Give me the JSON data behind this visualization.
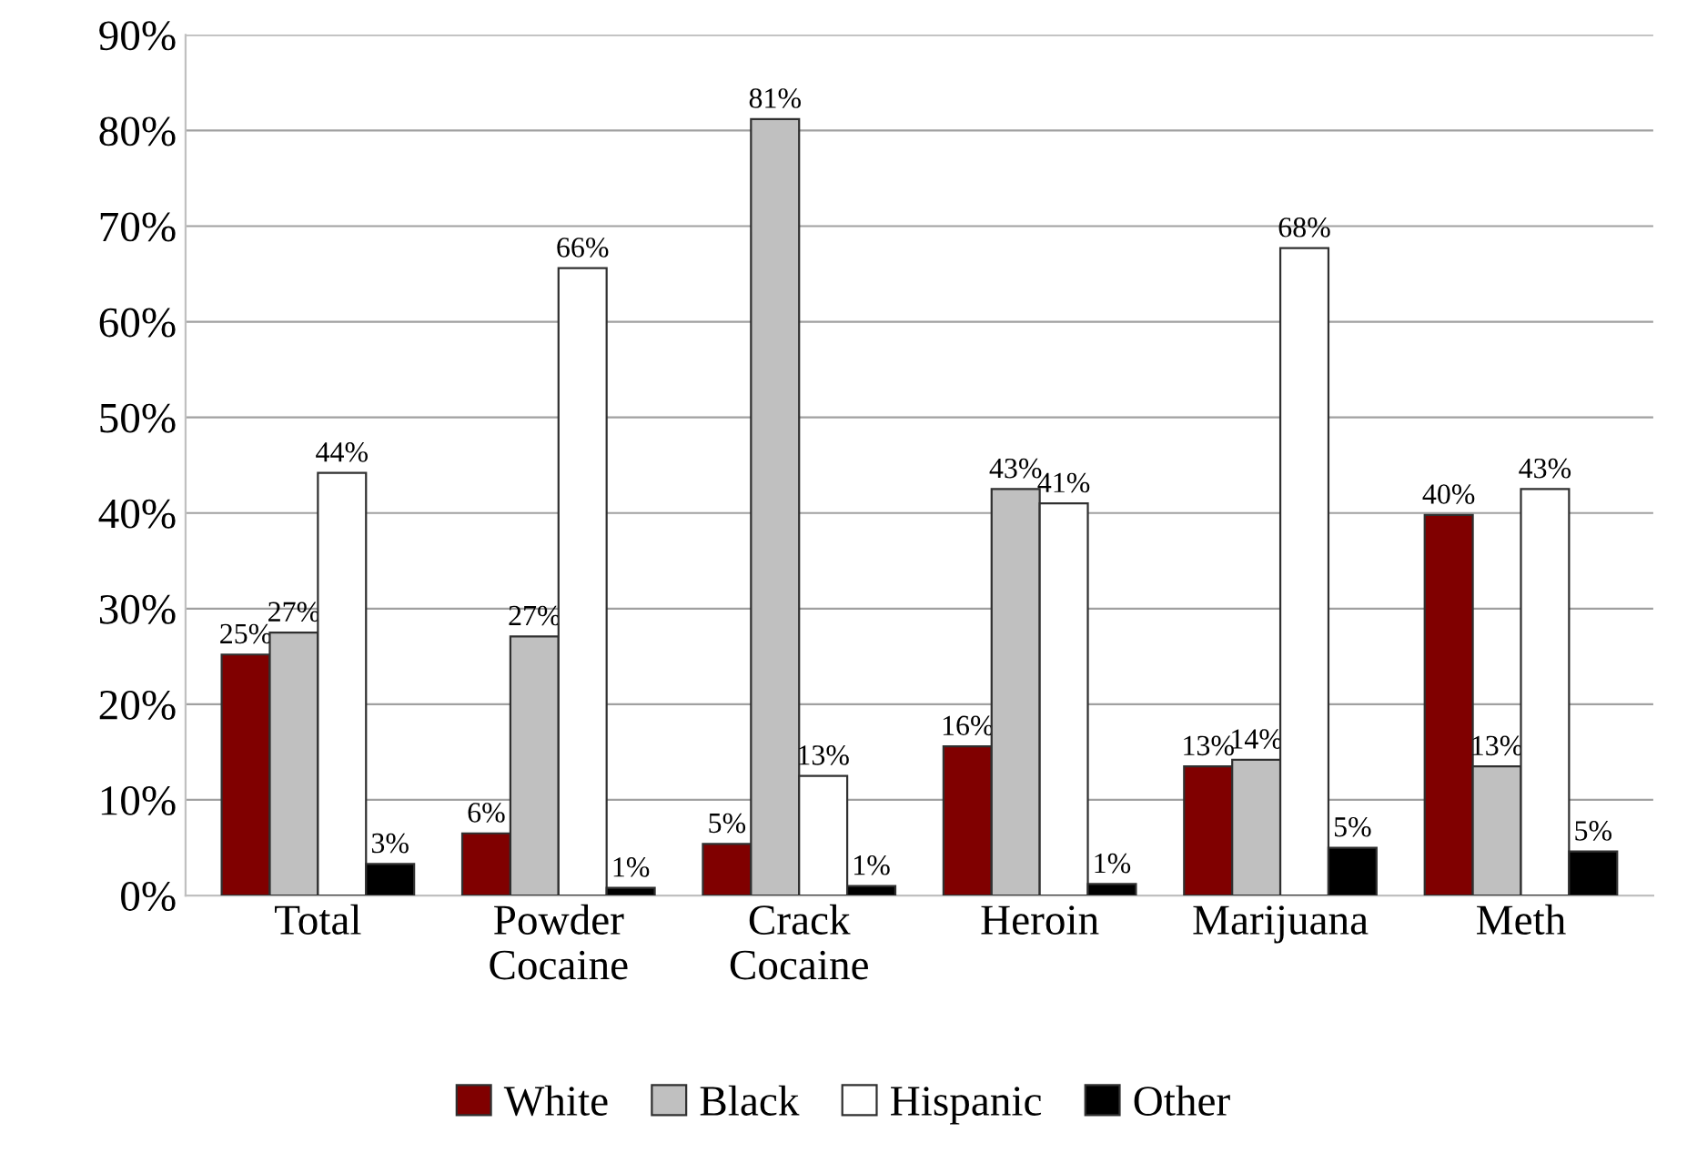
{
  "chart_data": {
    "type": "bar",
    "categories": [
      "Total",
      "Powder\nCocaine",
      "Crack\nCocaine",
      "Heroin",
      "Marijuana",
      "Meth"
    ],
    "series": [
      {
        "name": "White",
        "color": "#800000",
        "values": [
          25.2,
          6.5,
          5.4,
          15.6,
          13.5,
          39.8
        ],
        "value_labels": [
          "25%",
          "6%",
          "5%",
          "16%",
          "13%",
          "40%"
        ]
      },
      {
        "name": "Black",
        "color": "#c0c0c0",
        "values": [
          27.5,
          27.1,
          81.2,
          42.5,
          14.2,
          13.5
        ],
        "value_labels": [
          "27%",
          "27%",
          "81%",
          "43%",
          "14%",
          "13%"
        ]
      },
      {
        "name": "Hispanic",
        "color": "#ffffff",
        "values": [
          44.2,
          65.6,
          12.5,
          41.0,
          67.7,
          42.5
        ],
        "value_labels": [
          "44%",
          "66%",
          "13%",
          "41%",
          "68%",
          "43%"
        ]
      },
      {
        "name": "Other",
        "color": "#000000",
        "values": [
          3.3,
          0.8,
          1.0,
          1.2,
          5.0,
          4.6
        ],
        "value_labels": [
          "3%",
          "1%",
          "1%",
          "1%",
          "5%",
          "5%"
        ]
      }
    ],
    "ylim": [
      0,
      90
    ],
    "yticks": [
      {
        "value": 0,
        "label": "0%"
      },
      {
        "value": 10,
        "label": "10%"
      },
      {
        "value": 20,
        "label": "20%"
      },
      {
        "value": 30,
        "label": "30%"
      },
      {
        "value": 40,
        "label": "40%"
      },
      {
        "value": 50,
        "label": "50%"
      },
      {
        "value": 60,
        "label": "60%"
      },
      {
        "value": 70,
        "label": "70%"
      },
      {
        "value": 80,
        "label": "80%"
      },
      {
        "value": 90,
        "label": "90%"
      }
    ],
    "grid": "y",
    "legend": "bottom"
  }
}
